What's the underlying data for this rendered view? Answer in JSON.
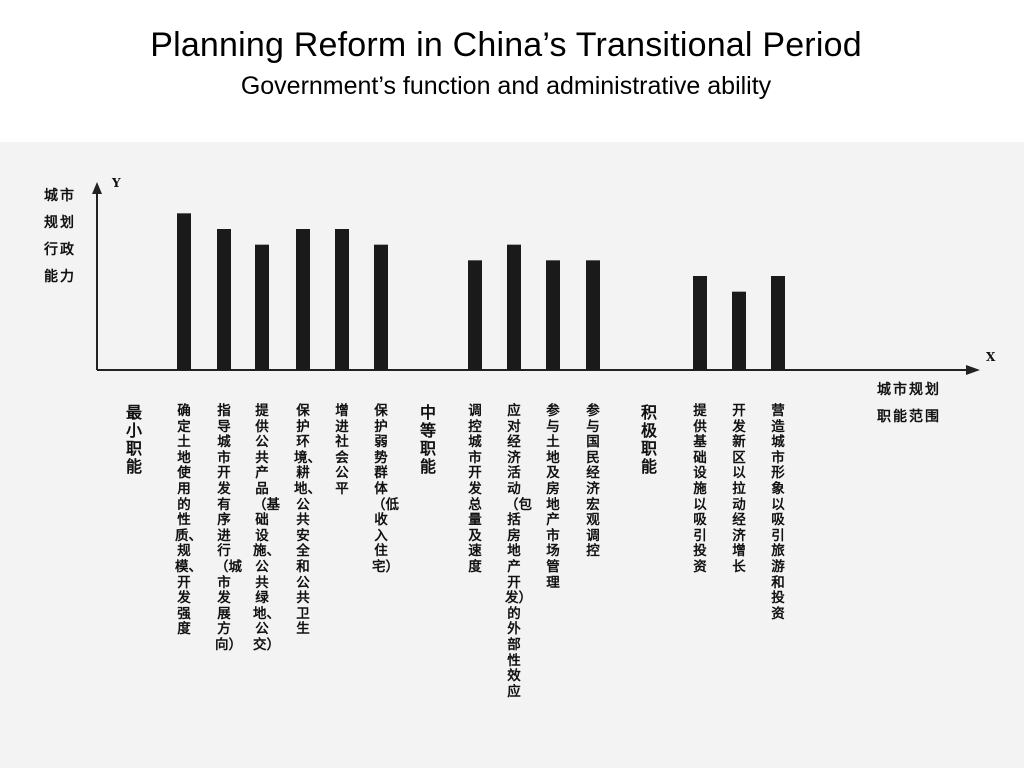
{
  "slide": {
    "title": "Planning Reform in China’s Transitional Period",
    "subtitle": "Government’s function and administrative ability"
  },
  "chart_data": {
    "type": "bar",
    "title": "",
    "x_axis_letter": "X",
    "y_axis_letter": "Y",
    "xlabel": [
      "城市规划",
      "职能范围"
    ],
    "ylabel": [
      "城市",
      "规划",
      "行政",
      "能力"
    ],
    "groups": [
      {
        "label": "最小职能",
        "categories": [
          "确定土地使用的性质、规模、开发强度",
          "指导城市开发有序进行（城市发展方向）",
          "提供公共产品（基础设施、公共绿地、公交）",
          "保护环境、耕地、公共安全和公共卫生",
          "增进社会公平",
          "保护弱势群体（低收入住宅）"
        ],
        "values": [
          10,
          9,
          8,
          9,
          9,
          8
        ]
      },
      {
        "label": "中等职能",
        "categories": [
          "调控城市开发总量及速度",
          "应对经济活动（包括房地产开发）的外部性效应",
          "参与土地及房地产市场管理",
          "参与国民经济宏观调控"
        ],
        "values": [
          7,
          8,
          7,
          7
        ]
      },
      {
        "label": "积极职能",
        "categories": [
          "提供基础设施以吸引投资",
          "开发新区以拉动经济增长",
          "营造城市形象以吸引旅游和投资"
        ],
        "values": [
          6,
          5,
          6
        ]
      }
    ],
    "ylim": [
      0,
      12
    ],
    "grid": false,
    "legend": "none"
  }
}
